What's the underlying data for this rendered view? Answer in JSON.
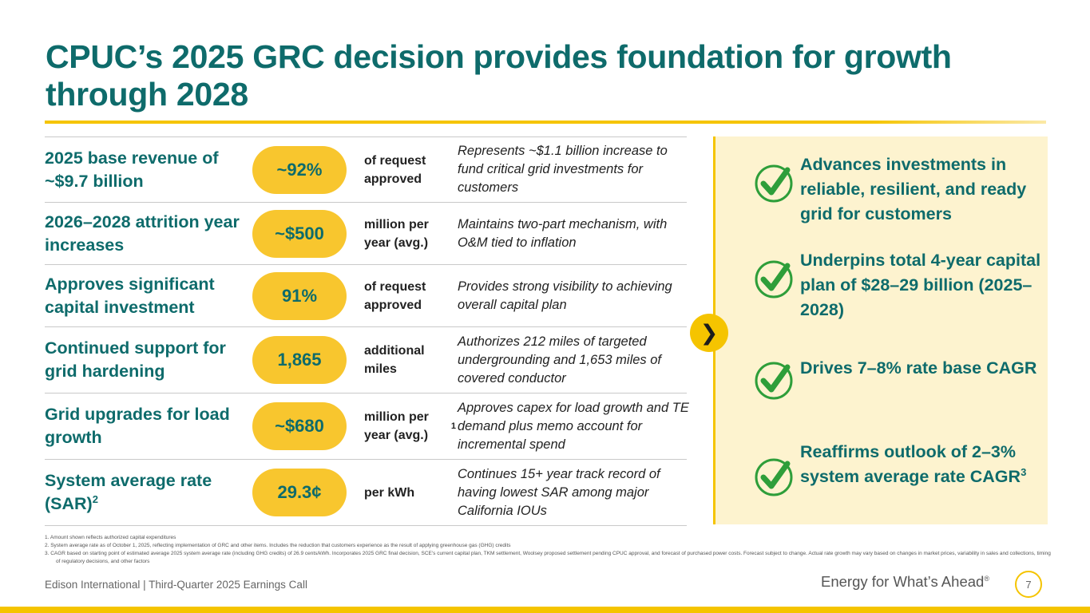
{
  "title": "CPUC’s 2025 GRC decision provides foundation for growth through 2028",
  "rows": [
    {
      "label": "2025 base revenue of ~$9.7 billion",
      "label_sup": "",
      "value": "~92%",
      "unit": "of request approved",
      "unit_sup": "",
      "desc": "Represents ~$1.1 billion increase to fund critical grid investments for customers"
    },
    {
      "label": "2026–2028 attrition year increases",
      "label_sup": "",
      "value": "~$500",
      "unit": "million per year (avg.)",
      "unit_sup": "",
      "desc": "Maintains two-part mechanism, with O&M tied to inflation"
    },
    {
      "label": "Approves significant capital investment",
      "label_sup": "",
      "value": "91%",
      "unit": "of request approved",
      "unit_sup": "",
      "desc": "Provides strong visibility to achieving overall capital plan"
    },
    {
      "label": "Continued support for grid hardening",
      "label_sup": "",
      "value": "1,865",
      "unit": "additional miles",
      "unit_sup": "",
      "desc": "Authorizes 212 miles of targeted undergrounding and 1,653 miles of covered conductor"
    },
    {
      "label": "Grid upgrades for load growth",
      "label_sup": "",
      "value": "~$680",
      "unit": "million per year (avg.)",
      "unit_sup": "1",
      "desc": "Approves capex for load growth and TE demand plus memo account for incremental spend"
    },
    {
      "label": "System average rate (SAR)",
      "label_sup": "2",
      "value": "29.3¢",
      "unit": "per kWh",
      "unit_sup": "",
      "desc": "Continues 15+ year track record of having lowest SAR among major California IOUs"
    }
  ],
  "outcomes": [
    {
      "text": "Advances investments in reliable, resilient, and ready grid for customers",
      "sup": ""
    },
    {
      "text": "Underpins total 4-year capital plan of $28–29 billion (2025–2028)",
      "sup": ""
    },
    {
      "text": "Drives 7–8% rate base CAGR",
      "sup": ""
    },
    {
      "text": "Reaffirms outlook of 2–3% system average rate CAGR",
      "sup": "3"
    }
  ],
  "footnotes": [
    "1.   Amount shown reflects authorized capital expenditures",
    "2.   System average rate as of October 1, 2025, reflecting implementation of GRC and other items. Includes the reduction that customers experience as the result of applying greenhouse gas (GHG) credits",
    "3.   CAGR based on starting point of estimated average 2025 system average rate (including GHG credits) of 26.9 cents/kWh. Incorporates 2025 GRC final decision, SCE’s current capital plan, TKM settlement, Woolsey proposed settlement pending CPUC approval, and forecast of purchased power costs. Forecast subject to change. Actual rate growth may vary based on changes in market prices, variability in sales and collections, timing of regulatory decisions, and other factors"
  ],
  "footer": {
    "left": "Edison International |  Third-Quarter 2025 Earnings Call",
    "tagline": "Energy for What’s Ahead",
    "tagline_mark": "®",
    "page": "7"
  },
  "icons": {
    "check": "checkmark-icon",
    "chevron": "chevron-right-icon"
  },
  "colors": {
    "accent": "#f5c400",
    "teal": "#0e6b6b",
    "pill": "#f8c62e",
    "panel": "#fdf3cf",
    "check": "#2e9e3a"
  }
}
